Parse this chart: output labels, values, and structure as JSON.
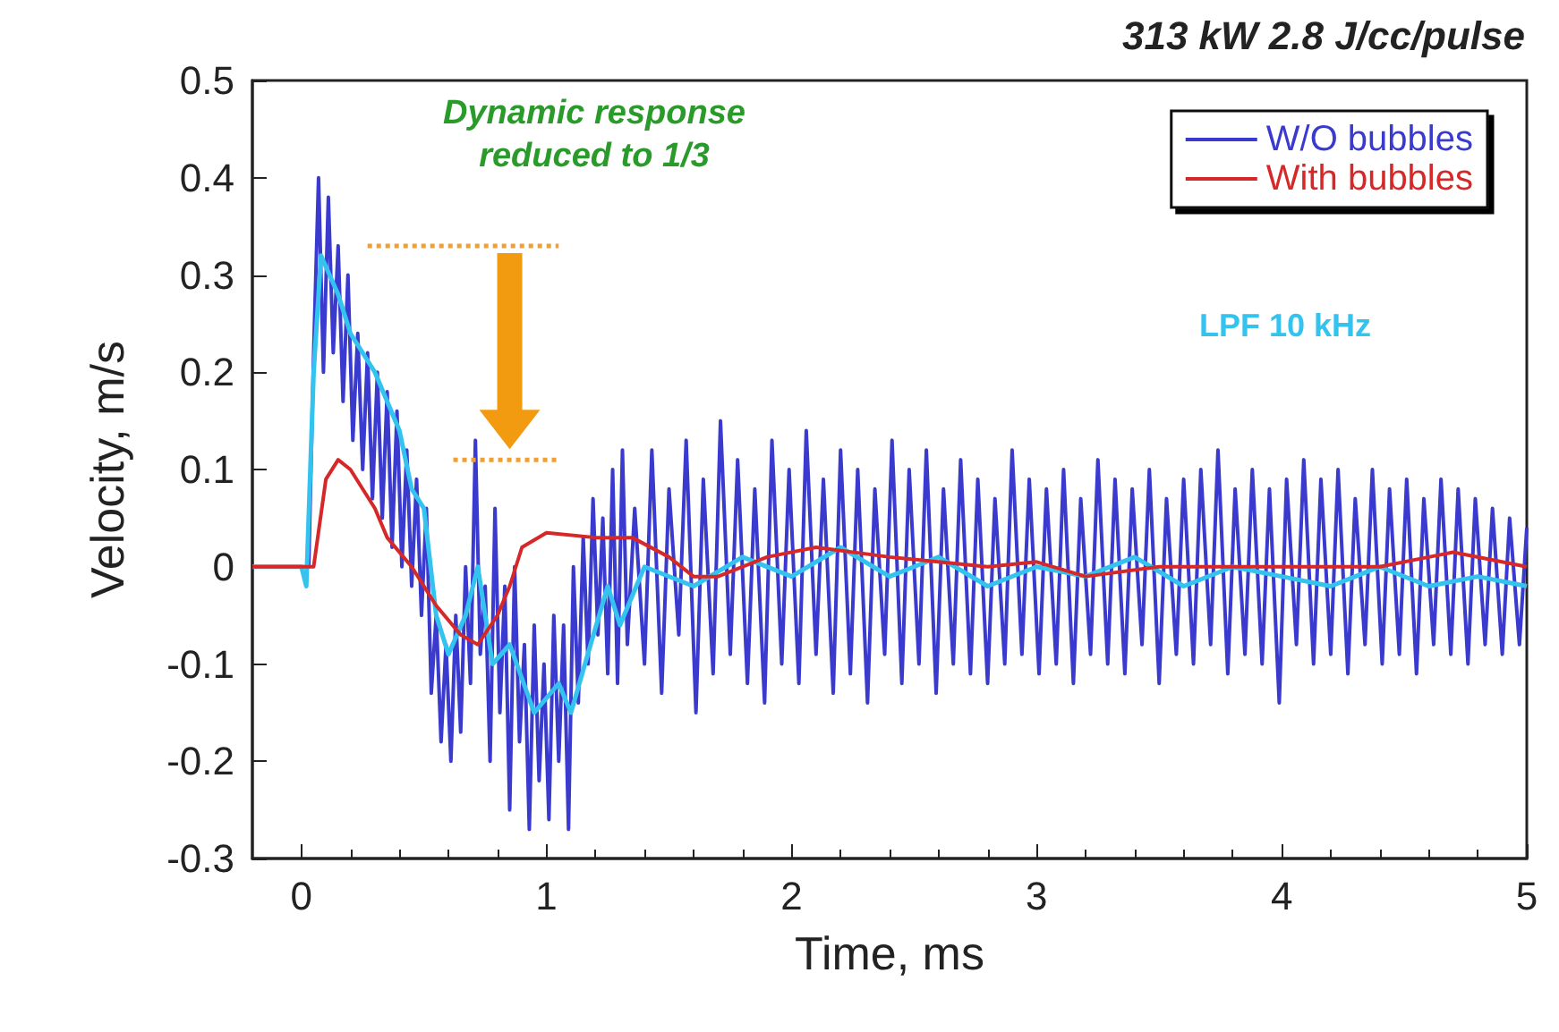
{
  "chart_data": {
    "type": "line",
    "title": "313 kW 2.8 J/cc/pulse",
    "xlabel": "Time, ms",
    "ylabel": "Velocity, m/s",
    "xlim": [
      -0.2,
      5
    ],
    "xticks": [
      0,
      1,
      2,
      3,
      4,
      5
    ],
    "ylim": [
      -0.3,
      0.5
    ],
    "yticks": [
      -0.3,
      -0.2,
      -0.1,
      0,
      0.1,
      0.2,
      0.3,
      0.4,
      0.5
    ],
    "grid": false,
    "legend": "top right",
    "marker": "none",
    "line_style": "solid",
    "annotations": [
      "Dynamic response reduced to 1/3",
      "LPF 10 kHz"
    ],
    "series": [
      {
        "name": "W/O bubbles",
        "color": "#3a3acf",
        "x": [
          -0.2,
          -0.1,
          0,
          0.03,
          0.05,
          0.07,
          0.09,
          0.11,
          0.13,
          0.15,
          0.17,
          0.19,
          0.21,
          0.23,
          0.25,
          0.27,
          0.29,
          0.31,
          0.33,
          0.35,
          0.37,
          0.39,
          0.41,
          0.43,
          0.45,
          0.47,
          0.49,
          0.51,
          0.53,
          0.55,
          0.57,
          0.59,
          0.61,
          0.63,
          0.65,
          0.67,
          0.69,
          0.71,
          0.73,
          0.75,
          0.77,
          0.79,
          0.81,
          0.83,
          0.85,
          0.87,
          0.89,
          0.91,
          0.93,
          0.95,
          0.97,
          0.99,
          1.01,
          1.03,
          1.05,
          1.07,
          1.09,
          1.11,
          1.13,
          1.15,
          1.17,
          1.19,
          1.21,
          1.23,
          1.25,
          1.27,
          1.29,
          1.31,
          1.33,
          1.36,
          1.4,
          1.43,
          1.47,
          1.5,
          1.54,
          1.57,
          1.61,
          1.64,
          1.68,
          1.71,
          1.75,
          1.78,
          1.82,
          1.85,
          1.89,
          1.92,
          1.96,
          1.99,
          2.03,
          2.06,
          2.1,
          2.13,
          2.17,
          2.2,
          2.24,
          2.27,
          2.31,
          2.34,
          2.38,
          2.41,
          2.45,
          2.48,
          2.52,
          2.55,
          2.59,
          2.62,
          2.66,
          2.69,
          2.73,
          2.76,
          2.8,
          2.83,
          2.87,
          2.9,
          2.94,
          2.97,
          3.01,
          3.04,
          3.08,
          3.11,
          3.15,
          3.18,
          3.22,
          3.25,
          3.29,
          3.32,
          3.36,
          3.39,
          3.43,
          3.46,
          3.5,
          3.53,
          3.57,
          3.6,
          3.64,
          3.67,
          3.71,
          3.74,
          3.78,
          3.81,
          3.85,
          3.88,
          3.92,
          3.95,
          3.99,
          4.02,
          4.06,
          4.09,
          4.13,
          4.16,
          4.2,
          4.23,
          4.27,
          4.3,
          4.34,
          4.37,
          4.41,
          4.44,
          4.48,
          4.51,
          4.55,
          4.58,
          4.62,
          4.65,
          4.69,
          4.72,
          4.76,
          4.79,
          4.83,
          4.86,
          4.9,
          4.93,
          4.97,
          5
        ],
        "values": [
          0,
          0,
          0,
          0,
          0.22,
          0.4,
          0.2,
          0.38,
          0.22,
          0.33,
          0.17,
          0.3,
          0.13,
          0.24,
          0.1,
          0.22,
          0.07,
          0.2,
          0.05,
          0.18,
          0.02,
          0.16,
          0,
          0.12,
          -0.02,
          0.09,
          -0.05,
          0.06,
          -0.13,
          -0.05,
          -0.18,
          -0.08,
          -0.2,
          -0.05,
          -0.17,
          0,
          -0.12,
          0.13,
          -0.09,
          -0.02,
          -0.2,
          0.06,
          -0.15,
          -0.02,
          -0.25,
          0,
          -0.18,
          -0.08,
          -0.27,
          -0.06,
          -0.22,
          -0.1,
          -0.26,
          -0.05,
          -0.2,
          -0.06,
          -0.27,
          0,
          -0.14,
          0.03,
          -0.1,
          0.07,
          -0.07,
          0.05,
          -0.11,
          0.1,
          -0.12,
          0.12,
          -0.08,
          0.06,
          -0.1,
          0.12,
          -0.13,
          0.08,
          -0.07,
          0.13,
          -0.15,
          0.09,
          -0.11,
          0.15,
          -0.09,
          0.11,
          -0.12,
          0.08,
          -0.14,
          0.13,
          -0.1,
          0.1,
          -0.12,
          0.14,
          -0.09,
          0.09,
          -0.13,
          0.12,
          -0.11,
          0.1,
          -0.14,
          0.08,
          -0.09,
          0.13,
          -0.12,
          0.1,
          -0.1,
          0.12,
          -0.13,
          0.08,
          -0.1,
          0.11,
          -0.11,
          0.09,
          -0.12,
          0.07,
          -0.1,
          0.12,
          -0.09,
          0.09,
          -0.11,
          0.08,
          -0.1,
          0.1,
          -0.12,
          0.07,
          -0.09,
          0.11,
          -0.1,
          0.09,
          -0.11,
          0.08,
          -0.08,
          0.1,
          -0.12,
          0.07,
          -0.09,
          0.09,
          -0.1,
          0.1,
          -0.08,
          0.12,
          -0.11,
          0.08,
          -0.09,
          0.1,
          -0.1,
          0.08,
          -0.14,
          0.09,
          -0.08,
          0.11,
          -0.1,
          0.09,
          -0.09,
          0.1,
          -0.11,
          0.07,
          -0.08,
          0.1,
          -0.1,
          0.08,
          -0.09,
          0.09,
          -0.11,
          0.07,
          -0.08,
          0.09,
          -0.09,
          0.08,
          -0.1,
          0.07,
          -0.08,
          0.06,
          -0.09,
          0.05,
          -0.08,
          0.04
        ]
      },
      {
        "name": "With bubbles",
        "color": "#d62828",
        "x": [
          -0.2,
          0,
          0.05,
          0.1,
          0.15,
          0.2,
          0.3,
          0.35,
          0.45,
          0.55,
          0.65,
          0.72,
          0.8,
          0.85,
          0.9,
          1,
          1.2,
          1.35,
          1.5,
          1.6,
          1.7,
          1.9,
          2.1,
          2.4,
          2.8,
          3,
          3.2,
          3.5,
          4,
          4.4,
          4.6,
          4.7,
          5
        ],
        "values": [
          0,
          0,
          0,
          0.09,
          0.11,
          0.1,
          0.06,
          0.03,
          0,
          -0.04,
          -0.07,
          -0.08,
          -0.05,
          -0.02,
          0.02,
          0.035,
          0.03,
          0.03,
          0.01,
          -0.01,
          -0.01,
          0.01,
          0.02,
          0.01,
          0,
          0.005,
          -0.01,
          0,
          0,
          0,
          0.01,
          0.015,
          0
        ]
      },
      {
        "color": "#33c3ee",
        "x": [
          -0.2,
          0,
          0.02,
          0.05,
          0.08,
          0.15,
          0.2,
          0.3,
          0.4,
          0.45,
          0.5,
          0.55,
          0.6,
          0.67,
          0.72,
          0.78,
          0.85,
          0.95,
          1.05,
          1.1,
          1.18,
          1.25,
          1.3,
          1.4,
          1.6,
          1.8,
          2,
          2.2,
          2.4,
          2.6,
          2.8,
          3,
          3.2,
          3.4,
          3.6,
          3.8,
          4,
          4.2,
          4.4,
          4.6,
          4.8,
          5
        ],
        "values": [
          0,
          0,
          -0.02,
          0.2,
          0.32,
          0.28,
          0.24,
          0.2,
          0.14,
          0.08,
          0.06,
          -0.05,
          -0.09,
          -0.05,
          0,
          -0.1,
          -0.08,
          -0.15,
          -0.12,
          -0.15,
          -0.08,
          -0.02,
          -0.06,
          0,
          -0.02,
          0.01,
          -0.01,
          0.02,
          -0.01,
          0.01,
          -0.02,
          0,
          -0.01,
          0.01,
          -0.02,
          0,
          -0.01,
          -0.02,
          0,
          -0.02,
          -0.01,
          -0.02
        ]
      },
      {
        "color": "#f0a030",
        "line_style": "dotted",
        "x": [
          0.27,
          1.05
        ],
        "values": [
          0.33,
          0.33
        ]
      },
      {
        "color": "#f0a030",
        "line_style": "dotted",
        "x": [
          0.62,
          1.05
        ],
        "values": [
          0.11,
          0.11
        ]
      }
    ]
  }
}
